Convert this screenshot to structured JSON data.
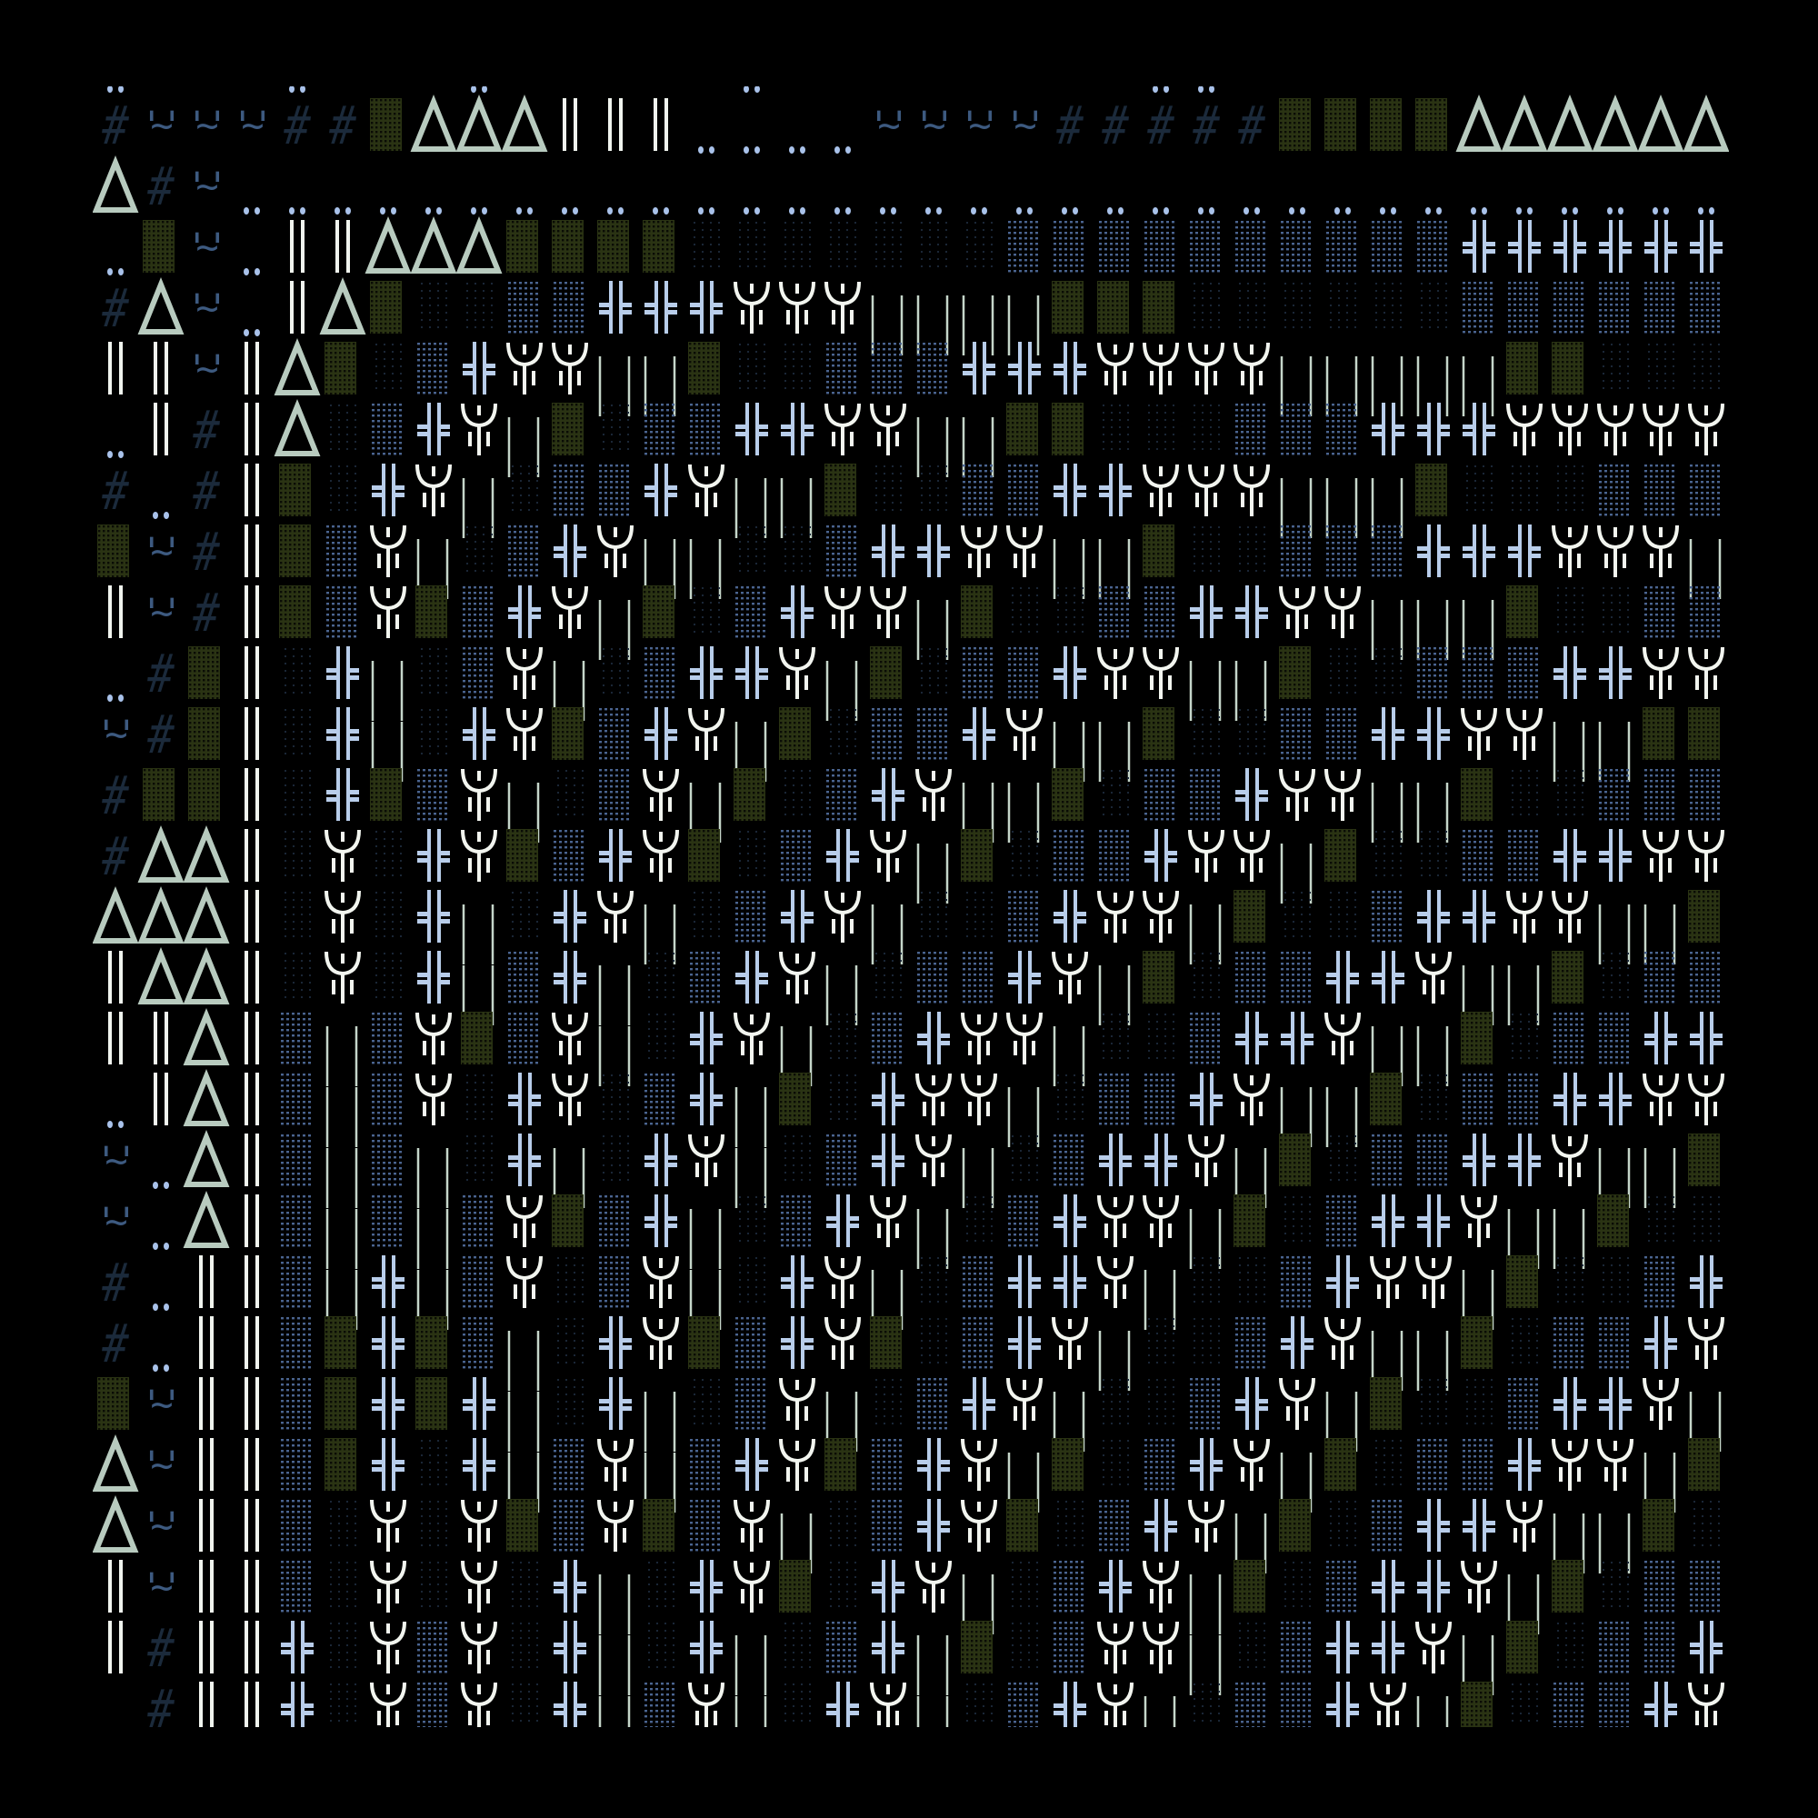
{
  "background": "#000000",
  "glyphs": {
    "#": {
      "name": "hash",
      "char": "#",
      "color": "#1b2a3b"
    },
    "~": {
      "name": "quote-tilde",
      "char": "'~'",
      "color": "#3d5a80"
    },
    "D": {
      "name": "delta",
      "char": "Δ",
      "color": "#b8cbbf"
    },
    "=": {
      "name": "double-bar",
      "char": "‖",
      "color": "#f0f4ee"
    },
    ".": {
      "name": "double-dot",
      "char": "..",
      "color": "#a9c2ea"
    },
    "B": {
      "name": "dense-shade",
      "char": "▓",
      "color": "#2a3313"
    },
    "m": {
      "name": "medium-shade",
      "char": "▒",
      "color": "#4a6490"
    },
    "b": {
      "name": "light-shade",
      "char": "░",
      "color": "#1a2636"
    },
    "H": {
      "name": "double-cross",
      "char": "╬",
      "color": "#b8cdea"
    },
    "Y": {
      "name": "psi",
      "char": "Ψ",
      "color": "#f2f5ef"
    },
    "l": {
      "name": "thin-bars",
      "char": "|",
      "color": "#c5d6ca"
    }
  },
  "rows": [
    ".   .   .     .        ..           ",
    "#~~~##BDDD===....~~~~#####BBBBDDDDDD",
    "D#~.................................",
    ".B~.==DDDBBBBbbbbbbbmmmmmmmmmmHHHHHH",
    "#D~.=DBbbmmHHHYYYllllBBBbbbbbbmmmmmm",
    "==~=DBbmHYYllBbbmmmHHHYYYYlllllBBbbb",
    ".=#=DbmHYlBbmmHHYYllBBbbbmmmHHHYYYYY",
    "#.#=BbHYlbmmHYllBbbmmHHYYYlllBbbbmmm",
    "B~#=BmYlbmHYllbbmHHYYllBbbmmmHHHYYYl",
    "=~#=BmYBmHYlBbmHYYlBbbmmHHYYlllBbbmm",
    ".#B=bHlbmYlbmHHYlBbmmHYYllBbbmmmHHYY",
    "~#B=bHlbHYBmHYlBbmmHYllBbbmmHHYYllBB",
    "#BB=bHBmYlbmYlBbmHYllBbmmHYYllBbbmmm",
    "#DD=bYbHYBmHYBbmHYlBbmmHYYlBbbmmHHYY",
    "DDD=bYbHlbHYlbmHYlbbmHYYlBbbmHHYYllB",
    "=DD=bYbHlmHlbmHYlbmmHYlBbmmHHYllBbmm",
    "==D=mlmYBmYlbHYlbmHYYlbbmHHYllBbmmHH",
    ".=D=mlmYbHYbmHlBbHYYlbmmHYllBbmmHHYY",
    "~.D=mlmlbHlbHYlbmHYlbmHHYlBbmmHHYllB",
    "~.D=mlmlmYBmHlbmHYlbmHYYlBbmHHYllBbb",
    "#.==mlHlmYbmYlbHYlbmHHYlbbmHYYlBbbmH",
    "#.==mBHBmlbHYBmHYBbmHYlbbmHYllBbmmHY",
    "B~==mBHBHlbHlbmYlbmHYlbbmHYlBbbmHHYl",
    "D~==mBHbHlmYlmHYBmHYlBbmHYlBbmmHYYlB",
    "D~==mbYbYBmYBmYlbmHYBbmHYlBbmHHYllBb",
    "=~==mbYbYbHlbHYBbHYlbmHYlBbmHHYlBbmm",
    "=#==HbYmYbHlbHlbmHlBbmYYlbmHHYlBbmmH",
    " #==HbYmYbHlmYlbHYlbmHYlbmmHYlBbmmHY"
  ]
}
